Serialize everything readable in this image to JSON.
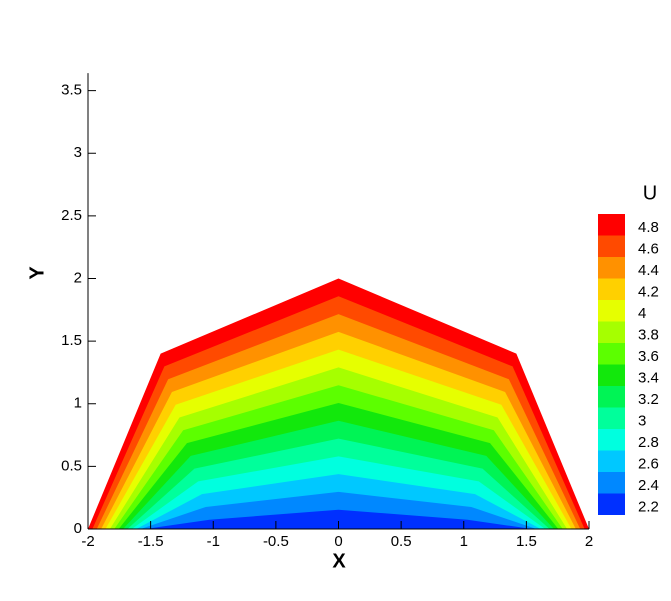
{
  "chart_data": {
    "type": "contour",
    "x_label": "X",
    "y_label": "Y",
    "legend_title": "U",
    "xlim": [
      -2,
      2
    ],
    "ylim": [
      0,
      3.64
    ],
    "xticks": [
      -2,
      -1.5,
      -1,
      -0.5,
      0,
      0.5,
      1,
      1.5,
      2
    ],
    "yticks": [
      0,
      0.5,
      1,
      1.5,
      2,
      2.5,
      3,
      3.5
    ],
    "boundary_x": [
      -2,
      -1.42,
      0,
      1.42,
      2
    ],
    "boundary_y": [
      0,
      1.4,
      2,
      1.4,
      0
    ],
    "levels": [
      4.8,
      4.6,
      4.4,
      4.2,
      4,
      3.8,
      3.6,
      3.4,
      3.2,
      3,
      2.8,
      2.6,
      2.4,
      2.2
    ],
    "colors": [
      "#ff0000",
      "#ff4a00",
      "#ff9100",
      "#ffd000",
      "#e6ff00",
      "#a6ff00",
      "#5cff00",
      "#12e80c",
      "#00f455",
      "#00ff9b",
      "#00ffdf",
      "#00c8ff",
      "#0088ff",
      "#0030ff"
    ]
  }
}
